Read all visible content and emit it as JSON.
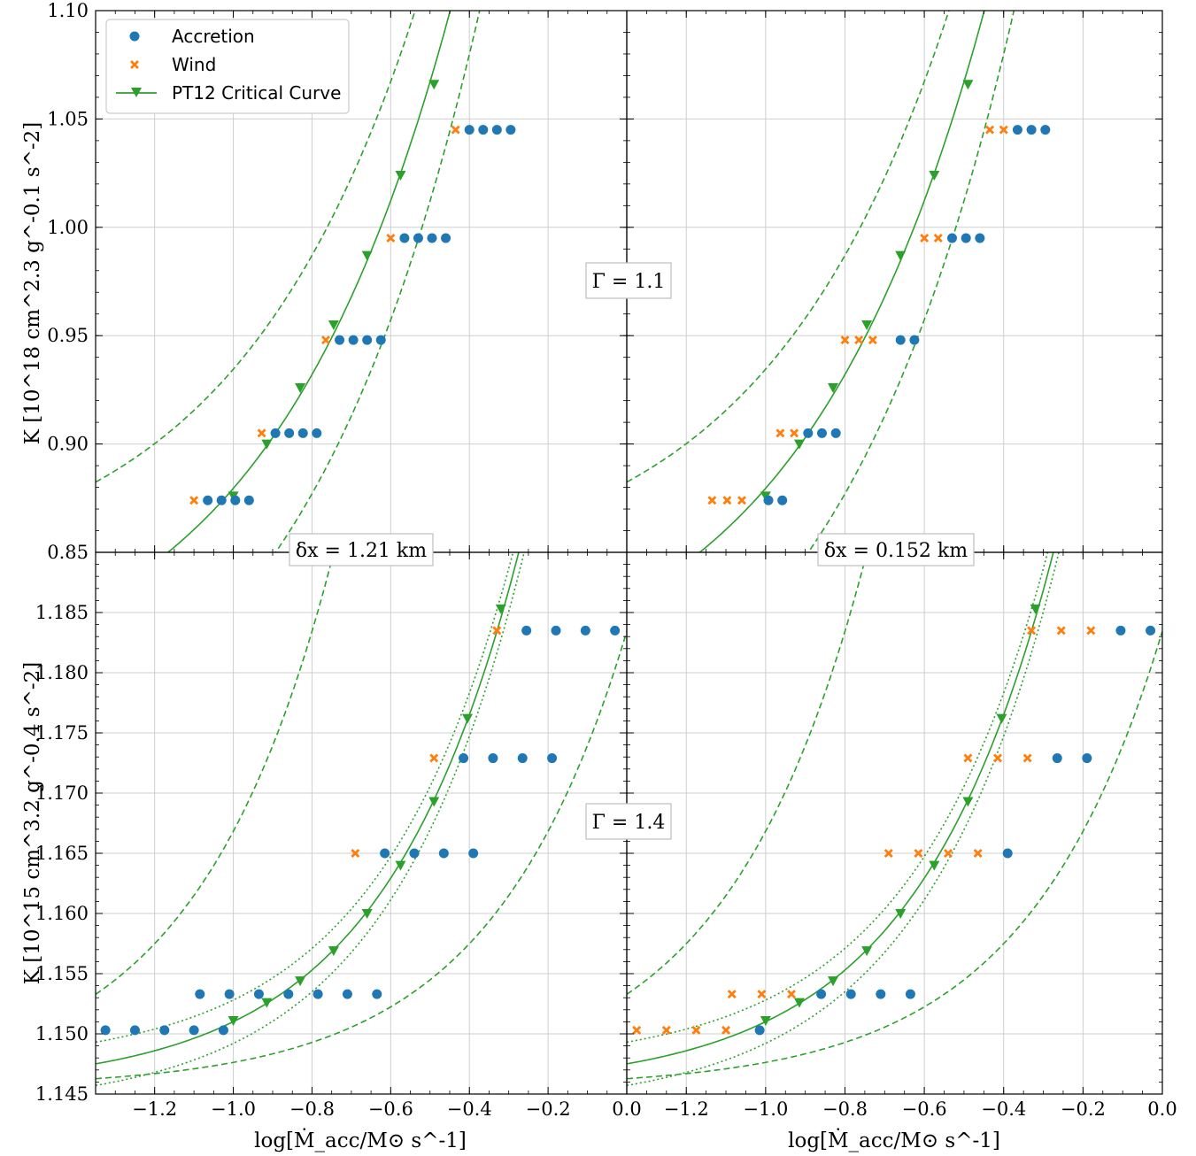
{
  "figure": {
    "y_labels": {
      "top": "K [10^18 cm^2.3 g^-0.1 s^-2]",
      "bottom": "K [10^15 cm^3.2 g^-0.4 s^-2]"
    },
    "x_label": "log[Ṁ_acc/M⊙ s^-1]",
    "gamma_labels": {
      "top": "Γ = 1.1",
      "bottom": "Γ = 1.4"
    },
    "resolution_labels": {
      "left": "δx = 1.21 km",
      "right": "δx = 0.152 km"
    },
    "legend": {
      "accretion": "Accretion",
      "wind": "Wind",
      "critical": "PT12 Critical Curve"
    },
    "colors": {
      "accretion": "#1f77b4",
      "wind": "#ff7f0e",
      "critical": "#2ca02c",
      "grid": "#cfcfcf"
    }
  },
  "chart_data": [
    {
      "type": "scatter",
      "panel": "top-left",
      "xlim": [
        -1.35,
        0.0
      ],
      "ylim": [
        0.85,
        1.1
      ],
      "yticks": [
        "0.85",
        "0.90",
        "0.95",
        "1.00",
        "1.05",
        "1.10"
      ],
      "yticks_visible": true,
      "series": [
        {
          "name": "Accretion",
          "points": [
            [
              -1.065,
              0.874
            ],
            [
              -1.03,
              0.874
            ],
            [
              -0.995,
              0.874
            ],
            [
              -0.96,
              0.874
            ],
            [
              -0.893,
              0.905
            ],
            [
              -0.858,
              0.905
            ],
            [
              -0.823,
              0.905
            ],
            [
              -0.788,
              0.905
            ],
            [
              -0.73,
              0.948
            ],
            [
              -0.695,
              0.948
            ],
            [
              -0.66,
              0.948
            ],
            [
              -0.625,
              0.948
            ],
            [
              -0.565,
              0.995
            ],
            [
              -0.53,
              0.995
            ],
            [
              -0.495,
              0.995
            ],
            [
              -0.46,
              0.995
            ],
            [
              -0.4,
              1.045
            ],
            [
              -0.365,
              1.045
            ],
            [
              -0.33,
              1.045
            ],
            [
              -0.295,
              1.045
            ]
          ]
        },
        {
          "name": "Wind",
          "points": [
            [
              -1.1,
              0.874
            ],
            [
              -0.928,
              0.905
            ],
            [
              -0.765,
              0.948
            ],
            [
              -0.6,
              0.995
            ],
            [
              -0.435,
              1.045
            ]
          ]
        }
      ],
      "critical_markers": [
        [
          -1.0,
          0.876
        ],
        [
          -0.915,
          0.9
        ],
        [
          -0.83,
          0.926
        ],
        [
          -0.745,
          0.955
        ],
        [
          -0.66,
          0.987
        ],
        [
          -0.575,
          1.024
        ],
        [
          -0.49,
          1.066
        ]
      ],
      "curves": {
        "center_a": 1.9345,
        "center_shift": 0.0,
        "band": [
          -0.055,
          0.055
        ],
        "band_style": "dashed",
        "ksum_shift": 0.0
      }
    },
    {
      "type": "scatter",
      "panel": "top-right",
      "xlim": [
        -1.35,
        0.0
      ],
      "ylim": [
        0.85,
        1.1
      ],
      "yticks": [
        "0.85",
        "0.90",
        "0.95",
        "1.00",
        "1.05",
        "1.10"
      ],
      "yticks_visible": false,
      "series": [
        {
          "name": "Accretion",
          "points": [
            [
              -0.993,
              0.874
            ],
            [
              -0.958,
              0.874
            ],
            [
              -0.893,
              0.905
            ],
            [
              -0.858,
              0.905
            ],
            [
              -0.823,
              0.905
            ],
            [
              -0.66,
              0.948
            ],
            [
              -0.625,
              0.948
            ],
            [
              -0.53,
              0.995
            ],
            [
              -0.495,
              0.995
            ],
            [
              -0.46,
              0.995
            ],
            [
              -0.365,
              1.045
            ],
            [
              -0.33,
              1.045
            ],
            [
              -0.295,
              1.045
            ]
          ]
        },
        {
          "name": "Wind",
          "points": [
            [
              -1.135,
              0.874
            ],
            [
              -1.097,
              0.874
            ],
            [
              -1.06,
              0.874
            ],
            [
              -0.963,
              0.905
            ],
            [
              -0.928,
              0.905
            ],
            [
              -0.8,
              0.948
            ],
            [
              -0.765,
              0.948
            ],
            [
              -0.73,
              0.948
            ],
            [
              -0.6,
              0.995
            ],
            [
              -0.565,
              0.995
            ],
            [
              -0.435,
              1.045
            ],
            [
              -0.4,
              1.045
            ]
          ]
        }
      ],
      "critical_markers": [
        [
          -1.0,
          0.876
        ],
        [
          -0.915,
          0.9
        ],
        [
          -0.83,
          0.926
        ],
        [
          -0.745,
          0.955
        ],
        [
          -0.66,
          0.987
        ],
        [
          -0.575,
          1.024
        ],
        [
          -0.49,
          1.066
        ]
      ],
      "curves": {
        "center_a": 1.9345,
        "center_shift": 0.0,
        "band": [
          -0.055,
          0.055
        ],
        "band_style": "dashed",
        "ksum_shift": 0.0
      }
    },
    {
      "type": "scatter",
      "panel": "bottom-left",
      "xlim": [
        -1.35,
        0.0
      ],
      "ylim": [
        1.145,
        1.19
      ],
      "xticks": [
        "−1.2",
        "−1.0",
        "−0.8",
        "−0.6",
        "−0.4",
        "−0.2",
        "0.0"
      ],
      "yticks": [
        "1.145",
        "1.150",
        "1.155",
        "1.160",
        "1.165",
        "1.170",
        "1.175",
        "1.180",
        "1.185"
      ],
      "yticks_visible": true,
      "series": [
        {
          "name": "Accretion",
          "points": [
            [
              -1.325,
              1.1503
            ],
            [
              -1.25,
              1.1503
            ],
            [
              -1.175,
              1.1503
            ],
            [
              -1.1,
              1.1503
            ],
            [
              -1.025,
              1.1503
            ],
            [
              -1.085,
              1.1533
            ],
            [
              -1.01,
              1.1533
            ],
            [
              -0.935,
              1.1533
            ],
            [
              -0.86,
              1.1533
            ],
            [
              -0.785,
              1.1533
            ],
            [
              -0.71,
              1.1533
            ],
            [
              -0.635,
              1.1533
            ],
            [
              -0.615,
              1.165
            ],
            [
              -0.54,
              1.165
            ],
            [
              -0.465,
              1.165
            ],
            [
              -0.39,
              1.165
            ],
            [
              -0.415,
              1.1729
            ],
            [
              -0.34,
              1.1729
            ],
            [
              -0.265,
              1.1729
            ],
            [
              -0.19,
              1.1729
            ],
            [
              -0.255,
              1.1835
            ],
            [
              -0.18,
              1.1835
            ],
            [
              -0.105,
              1.1835
            ],
            [
              -0.03,
              1.1835
            ]
          ]
        },
        {
          "name": "Wind",
          "points": [
            [
              -0.69,
              1.165
            ],
            [
              -0.49,
              1.1729
            ],
            [
              -0.33,
              1.1835
            ]
          ]
        }
      ],
      "critical_markers": [
        [
          -1.0,
          1.1511
        ],
        [
          -0.915,
          1.1526
        ],
        [
          -0.83,
          1.1544
        ],
        [
          -0.745,
          1.1569
        ],
        [
          -0.66,
          1.16
        ],
        [
          -0.575,
          1.164
        ],
        [
          -0.49,
          1.1693
        ],
        [
          -0.405,
          1.1762
        ],
        [
          -0.32,
          1.1853
        ]
      ],
      "curves": {
        "center_a": 2.1115,
        "center_shift": 0.0,
        "band": [
          -0.0018,
          0.0018
        ],
        "band_style": "dotted",
        "ksum_shift": 1.1433,
        "wide": [
          0.0102,
          -0.0141
        ],
        "wide_style": "dashed"
      }
    },
    {
      "type": "scatter",
      "panel": "bottom-right",
      "xlim": [
        -1.35,
        0.0
      ],
      "ylim": [
        1.145,
        1.19
      ],
      "xticks": [
        "−1.2",
        "−1.0",
        "−0.8",
        "−0.6",
        "−0.4",
        "−0.2",
        "0.0"
      ],
      "yticks": [
        "1.145",
        "1.150",
        "1.155",
        "1.160",
        "1.165",
        "1.170",
        "1.175",
        "1.180",
        "1.185"
      ],
      "yticks_visible": false,
      "series": [
        {
          "name": "Accretion",
          "points": [
            [
              -1.015,
              1.1503
            ],
            [
              -0.86,
              1.1533
            ],
            [
              -0.785,
              1.1533
            ],
            [
              -0.71,
              1.1533
            ],
            [
              -0.635,
              1.1533
            ],
            [
              -0.39,
              1.165
            ],
            [
              -0.265,
              1.1729
            ],
            [
              -0.19,
              1.1729
            ],
            [
              -0.105,
              1.1835
            ],
            [
              -0.03,
              1.1835
            ]
          ]
        },
        {
          "name": "Wind",
          "points": [
            [
              -1.325,
              1.1503
            ],
            [
              -1.25,
              1.1503
            ],
            [
              -1.175,
              1.1503
            ],
            [
              -1.1,
              1.1503
            ],
            [
              -1.085,
              1.1533
            ],
            [
              -1.01,
              1.1533
            ],
            [
              -0.935,
              1.1533
            ],
            [
              -0.69,
              1.165
            ],
            [
              -0.615,
              1.165
            ],
            [
              -0.54,
              1.165
            ],
            [
              -0.465,
              1.165
            ],
            [
              -0.49,
              1.1729
            ],
            [
              -0.415,
              1.1729
            ],
            [
              -0.34,
              1.1729
            ],
            [
              -0.33,
              1.1835
            ],
            [
              -0.255,
              1.1835
            ],
            [
              -0.18,
              1.1835
            ]
          ]
        }
      ],
      "critical_markers": [
        [
          -1.0,
          1.1511
        ],
        [
          -0.915,
          1.1526
        ],
        [
          -0.83,
          1.1544
        ],
        [
          -0.745,
          1.1569
        ],
        [
          -0.66,
          1.16
        ],
        [
          -0.575,
          1.164
        ],
        [
          -0.49,
          1.1693
        ],
        [
          -0.405,
          1.1762
        ],
        [
          -0.32,
          1.1853
        ]
      ],
      "curves": {
        "center_a": 2.1115,
        "center_shift": 0.0,
        "band": [
          -0.0018,
          0.0018
        ],
        "band_style": "dotted",
        "ksum_shift": 1.1433,
        "wide": [
          0.0102,
          -0.0141
        ],
        "wide_style": "dashed"
      }
    }
  ]
}
